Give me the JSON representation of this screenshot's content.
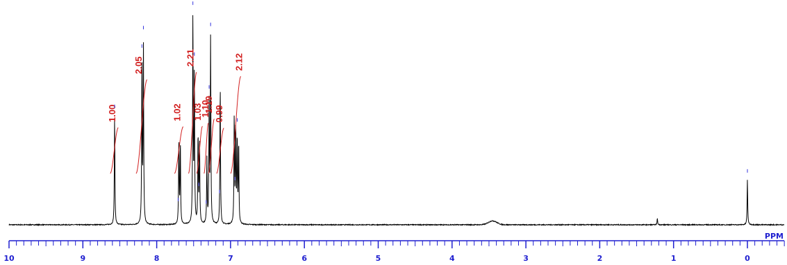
{
  "chart_data": {
    "type": "line",
    "title": "",
    "xlabel": "PPM",
    "ylabel": "",
    "xlim": [
      10,
      -0.5
    ],
    "x_reversed": true,
    "major_ticks": [
      "10",
      "9",
      "8",
      "7",
      "6",
      "5",
      "4",
      "3",
      "2",
      "1",
      "0"
    ],
    "minor_tick_step": 0.1,
    "colors": {
      "spectrum": "#000000",
      "integral": "#d22020",
      "axis": "#1f1fd0",
      "peak_marker": "#3333dd"
    },
    "peaks": [
      {
        "ppm": 8.57,
        "height": 0.51
      },
      {
        "ppm": 8.2,
        "height": 0.75
      },
      {
        "ppm": 8.18,
        "height": 0.84
      },
      {
        "ppm": 7.7,
        "height": 0.4
      },
      {
        "ppm": 7.68,
        "height": 0.38
      },
      {
        "ppm": 7.51,
        "height": 0.97
      },
      {
        "ppm": 7.49,
        "height": 0.7
      },
      {
        "ppm": 7.44,
        "height": 0.42
      },
      {
        "ppm": 7.42,
        "height": 0.4
      },
      {
        "ppm": 7.32,
        "height": 0.3
      },
      {
        "ppm": 7.29,
        "height": 0.55
      },
      {
        "ppm": 7.27,
        "height": 0.86
      },
      {
        "ppm": 7.14,
        "height": 0.66
      },
      {
        "ppm": 6.95,
        "height": 0.51
      },
      {
        "ppm": 6.93,
        "height": 0.45
      },
      {
        "ppm": 6.91,
        "height": 0.4
      },
      {
        "ppm": 6.89,
        "height": 0.38
      },
      {
        "ppm": 1.22,
        "height": 0.03
      },
      {
        "ppm": 0.0,
        "height": 0.21
      }
    ],
    "broad_humps": [
      {
        "ppm": 3.45,
        "height": 0.018
      }
    ],
    "peak_markers": [
      8.57,
      8.2,
      8.18,
      7.71,
      7.51,
      7.49,
      7.43,
      7.33,
      7.29,
      7.27,
      7.15,
      6.94,
      6.91,
      0.0
    ],
    "integrals": [
      {
        "label": "1.00",
        "ppm_start": 8.63,
        "ppm_end": 8.52,
        "label_ppm": 8.6,
        "value": 1.0
      },
      {
        "label": "2.05",
        "ppm_start": 8.28,
        "ppm_end": 8.13,
        "label_ppm": 8.24,
        "value": 2.05
      },
      {
        "label": "1.02",
        "ppm_start": 7.76,
        "ppm_end": 7.64,
        "label_ppm": 7.72,
        "value": 1.02
      },
      {
        "label": "2.21",
        "ppm_start": 7.57,
        "ppm_end": 7.46,
        "label_ppm": 7.54,
        "value": 2.21
      },
      {
        "label": "1.03",
        "ppm_start": 7.46,
        "ppm_end": 7.38,
        "label_ppm": 7.44,
        "value": 1.03
      },
      {
        "label": "1.10",
        "ppm_start": 7.36,
        "ppm_end": 7.3,
        "label_ppm": 7.34,
        "value": 1.1
      },
      {
        "label": "1.19",
        "ppm_start": 7.3,
        "ppm_end": 7.22,
        "label_ppm": 7.29,
        "value": 1.19
      },
      {
        "label": "0.99",
        "ppm_start": 7.19,
        "ppm_end": 7.09,
        "label_ppm": 7.15,
        "value": 0.99
      },
      {
        "label": "2.12",
        "ppm_start": 7.0,
        "ppm_end": 6.86,
        "label_ppm": 6.88,
        "value": 2.12
      }
    ]
  }
}
